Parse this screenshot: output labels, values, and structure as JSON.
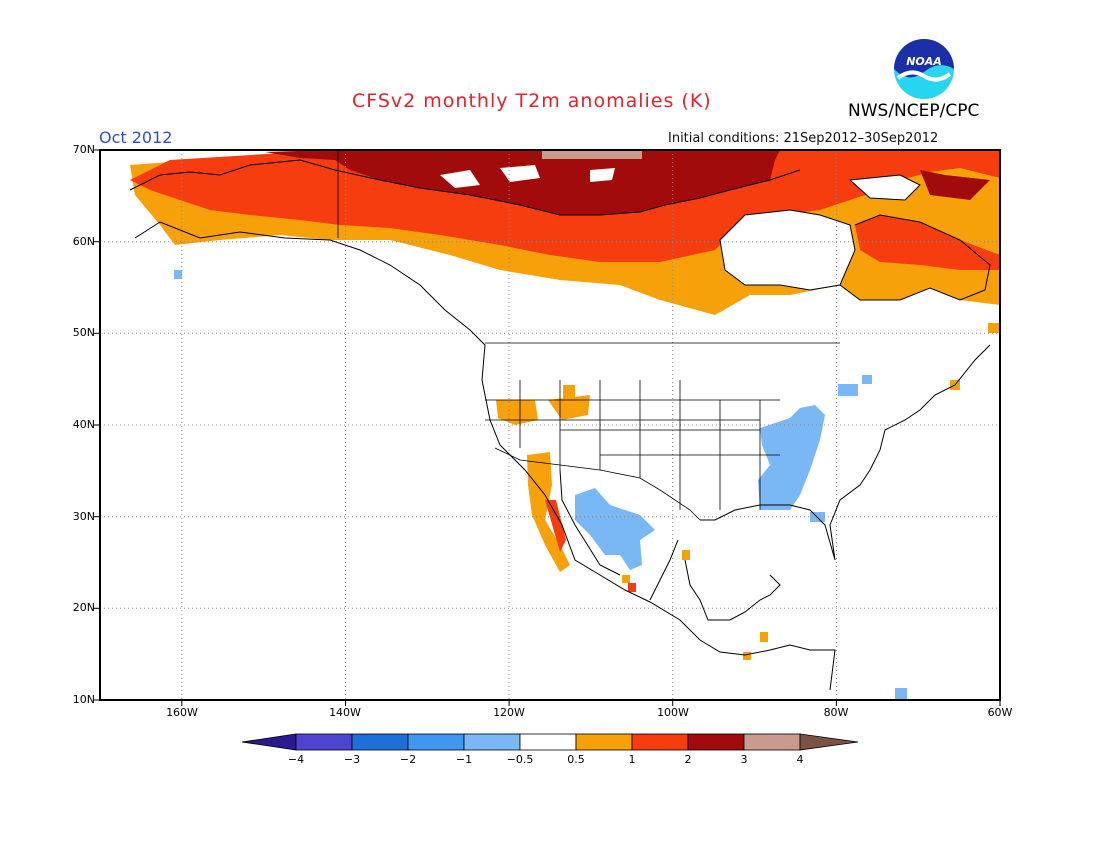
{
  "header": {
    "title": "CFSv2 monthly T2m anomalies (K)",
    "month": "Oct 2012",
    "initial_conditions": "Initial conditions: 21Sep2012–30Sep2012",
    "agency": "NWS/NCEP/CPC",
    "logo_text": "NOAA"
  },
  "map": {
    "lat_labels": [
      "70N",
      "60N",
      "50N",
      "40N",
      "30N",
      "20N",
      "10N"
    ],
    "lon_labels": [
      "160W",
      "140W",
      "120W",
      "100W",
      "80W",
      "60W"
    ],
    "extent": {
      "lon_min": -170,
      "lon_max": -60,
      "lat_min": 10,
      "lat_max": 70
    },
    "anomaly_regions": [
      {
        "region": "Northern Canada / Arctic coast",
        "anomaly_range": "2 to 3"
      },
      {
        "region": "Alaska and northwestern Canada",
        "anomaly_range": "1 to 2"
      },
      {
        "region": "Southern Canada fringe",
        "anomaly_range": "0.5 to 1"
      },
      {
        "region": "Northern Quebec and Labrador",
        "anomaly_range": "1 to 2"
      },
      {
        "region": "Ohio and Tennessee valleys",
        "anomaly_range": "-1 to -0.5"
      },
      {
        "region": "Northwestern Mexico",
        "anomaly_range": "-1 to -0.5"
      },
      {
        "region": "Baja California and Great Basin",
        "anomaly_range": "0.5 to 2"
      }
    ]
  },
  "colorbar": {
    "ticks": [
      "−4",
      "−3",
      "−2",
      "−1",
      "−0.5",
      "0.5",
      "1",
      "2",
      "3",
      "4"
    ],
    "colors": [
      "#2a1a8e",
      "#4f44d0",
      "#1f6fd8",
      "#3f97ef",
      "#7ab8f5",
      "#ffffff",
      "#f7a10a",
      "#f53d0f",
      "#a10b0b",
      "#c79c8f",
      "#7b5344"
    ]
  }
}
